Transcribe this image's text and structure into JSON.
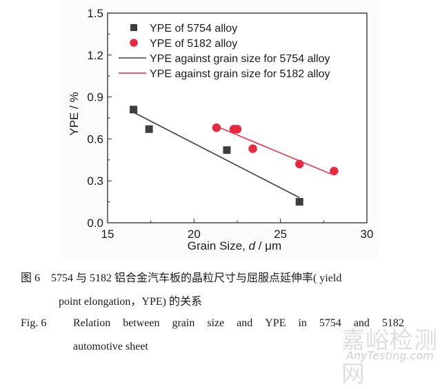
{
  "chart_data": {
    "type": "scatter",
    "title": "",
    "xlabel": "Grain Size, d / μm",
    "xlabel_parts": {
      "prefix": "Grain Size, ",
      "italic": "d",
      "suffix": " / μm"
    },
    "ylabel": "YPE / %",
    "xlim": [
      15,
      30
    ],
    "ylim": [
      0.0,
      1.5
    ],
    "x_ticks": [
      15,
      20,
      25,
      30
    ],
    "x_tick_labels": [
      "15",
      "20",
      "25",
      "30"
    ],
    "x_minor_ticks": [
      17.5,
      22.5,
      27.5
    ],
    "y_ticks": [
      0.0,
      0.3,
      0.6,
      0.9,
      1.2,
      1.5
    ],
    "y_tick_labels": [
      "0.0",
      "0.3",
      "0.6",
      "0.9",
      "1.2",
      "1.5"
    ],
    "y_minor_ticks": [
      0.15,
      0.45,
      0.75,
      1.05,
      1.35
    ],
    "grid": false,
    "legend_position": "top-left",
    "series": [
      {
        "name": "YPE of 5754 alloy",
        "kind": "scatter",
        "marker": "square",
        "color": "#3d3f45",
        "x": [
          16.5,
          17.4,
          21.9,
          26.1
        ],
        "y": [
          0.81,
          0.67,
          0.52,
          0.15
        ]
      },
      {
        "name": "YPE of 5182 alloy",
        "kind": "scatter",
        "marker": "circle",
        "color": "#e8293f",
        "x": [
          21.3,
          22.3,
          22.5,
          23.4,
          26.1,
          28.1
        ],
        "y": [
          0.68,
          0.67,
          0.67,
          0.53,
          0.42,
          0.37
        ]
      },
      {
        "name": "YPE against grain size for 5754 alloy",
        "kind": "line",
        "color": "#3d3f45",
        "x": [
          16.5,
          26.1
        ],
        "y": [
          0.79,
          0.18
        ]
      },
      {
        "name": "YPE against grain size for 5182 alloy",
        "kind": "line",
        "color": "#e8293f",
        "x": [
          21.5,
          27.9
        ],
        "y": [
          0.68,
          0.35
        ]
      }
    ]
  },
  "caption": {
    "zh_line1": "图 6　5754 与 5182 铝合金汽车板的晶粒尺寸与屈服点延伸率( yield",
    "zh_line2": "point elongation，YPE) 的关系",
    "en_label": "Fig. 6",
    "en_line1_words": [
      "Relation",
      "between",
      "grain",
      "size",
      "and",
      "YPE",
      "in",
      "5754",
      "and",
      "5182"
    ],
    "en_line2": "automotive sheet"
  },
  "watermark": {
    "zh": "嘉峪检测网",
    "en": "AnyTesting.com"
  }
}
